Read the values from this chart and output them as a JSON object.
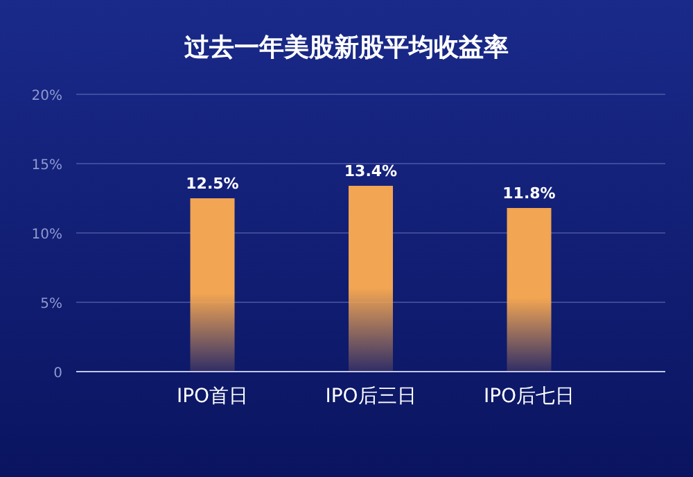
{
  "chart_data": {
    "type": "bar",
    "title": "过去一年美股新股平均收益率",
    "categories": [
      "IPO首日",
      "IPO后三日",
      "IPO后七日"
    ],
    "values": [
      12.5,
      13.4,
      11.8
    ],
    "value_labels": [
      "12.5%",
      "13.4%",
      "11.8%"
    ],
    "color": "#f2a552",
    "ylim": [
      0,
      20
    ],
    "yticks": [
      {
        "value": 0,
        "label": "0"
      },
      {
        "value": 5,
        "label": "5%"
      },
      {
        "value": 10,
        "label": "10%"
      },
      {
        "value": 15,
        "label": "15%"
      },
      {
        "value": 20,
        "label": "20%"
      }
    ],
    "grid": "y"
  }
}
